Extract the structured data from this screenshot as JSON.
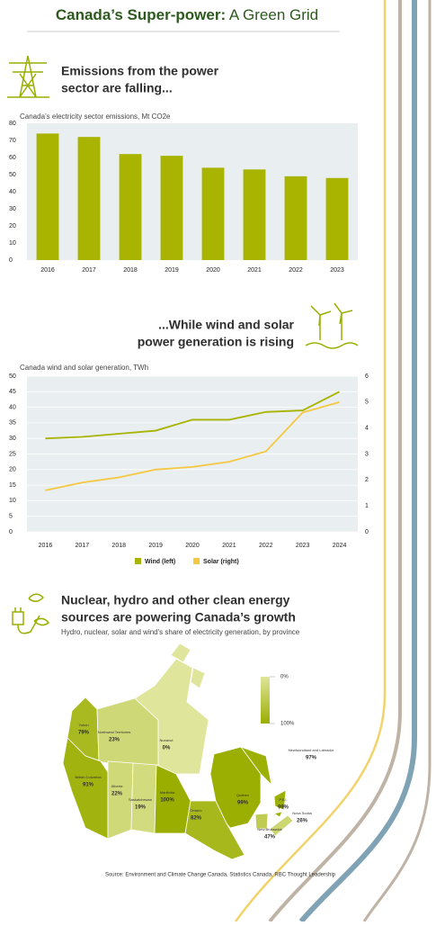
{
  "header": {
    "title_bold": "Canada’s Super-power:",
    "title_rest": "A Green Grid"
  },
  "chart_data": [
    {
      "type": "bar",
      "title": [
        "Emissions from the power",
        "sector are falling..."
      ],
      "subtitle": "Canada’s electricity sector emissions, Mt CO2e",
      "categories": [
        "2016",
        "2017",
        "2018",
        "2019",
        "2020",
        "2021",
        "2022",
        "2023"
      ],
      "values": [
        74,
        72,
        62,
        61,
        54,
        53,
        49,
        48
      ],
      "color": "#a8b400",
      "ylim": [
        0,
        80
      ],
      "yticks": [
        0,
        10,
        20,
        30,
        40,
        50,
        60,
        70,
        80
      ],
      "grid": false
    },
    {
      "type": "line",
      "title": [
        "...While wind and solar",
        "power generation is rising"
      ],
      "subtitle": "Canada wind and solar generation, TWh",
      "categories": [
        "2016",
        "2017",
        "2018",
        "2019",
        "2020",
        "2021",
        "2022",
        "2023",
        "2024"
      ],
      "series": [
        {
          "name": "Wind (left)",
          "color": "#a8b400",
          "values": [
            30,
            30.5,
            31.5,
            32.5,
            36,
            36,
            38.5,
            39,
            45
          ]
        },
        {
          "name": "Solar (right)",
          "color": "#f5c842",
          "axis": "y2",
          "values": [
            1.6,
            1.9,
            2.1,
            2.4,
            2.5,
            2.7,
            3.1,
            4.6,
            5.0
          ]
        }
      ],
      "ylim": [
        0,
        50
      ],
      "yticks": [
        0,
        5,
        10,
        15,
        20,
        25,
        30,
        35,
        40,
        45,
        50
      ],
      "y2lim": [
        0,
        6
      ],
      "y2ticks": [
        0,
        1,
        2,
        3,
        4,
        5,
        6
      ],
      "grid": true,
      "legend": "bottom"
    },
    {
      "type": "map",
      "title": [
        "Nuclear, hydro and other clean energy",
        "sources are powering Canada’s growth"
      ],
      "subtitle": "Hydro, nuclear, solar and wind's share of electricity generation, by province",
      "categories": [
        "Yukon",
        "Northwest Territories",
        "Nunavut",
        "British Columbia",
        "Alberta",
        "Saskatchewan",
        "Manitoba",
        "Ontario",
        "Quebec",
        "Newfoundland and Labrador",
        "P.E.I.",
        "New Brunswick",
        "Nova Scotia"
      ],
      "values": [
        79,
        23,
        0,
        91,
        22,
        19,
        100,
        82,
        99,
        97,
        99,
        47,
        26
      ],
      "value_labels": [
        "79%",
        "23%",
        "0%",
        "91%",
        "22%",
        "19%",
        "100%",
        "82%",
        "99%",
        "97%",
        "99%",
        "47%",
        "26%"
      ],
      "colorbar": {
        "colors": [
          "#dfe59a",
          "#9aae00"
        ],
        "ticks": [
          {
            "value": 0,
            "label": "0%"
          },
          {
            "value": 100,
            "label": "100%"
          }
        ]
      }
    }
  ],
  "source": "Source: Environment and Climate Change Canada, Statistics Canada, RBC Thought Leadership"
}
